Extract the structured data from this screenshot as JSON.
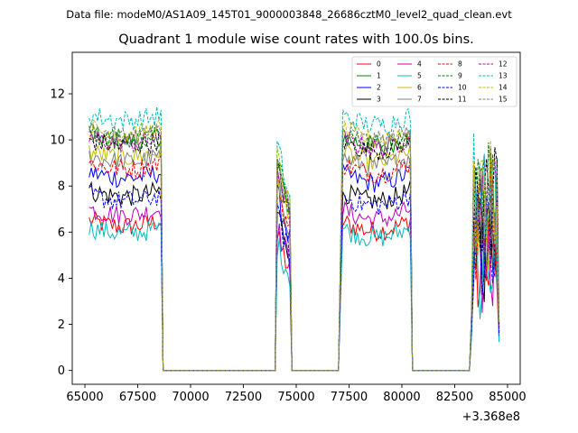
{
  "chart_data": {
    "type": "line",
    "suptitle": "Data file: modeM0/AS1A09_145T01_9000003848_26686cztM0_level2_quad_clean.evt",
    "title": "Quadrant 1 module wise count rates with 100.0s bins.",
    "xlabel": "",
    "ylabel": "",
    "x_offset_label": "+3.368e8",
    "xlim": [
      64400,
      85600
    ],
    "ylim": [
      -0.6,
      13.8
    ],
    "x_ticks": [
      65000,
      67500,
      70000,
      72500,
      75000,
      77500,
      80000,
      82500,
      85000
    ],
    "x_tick_labels": [
      "65000",
      "67500",
      "70000",
      "72500",
      "75000",
      "77500",
      "80000",
      "82500",
      "85000"
    ],
    "y_ticks": [
      0,
      2,
      4,
      6,
      8,
      10,
      12
    ],
    "y_tick_labels": [
      "0",
      "2",
      "4",
      "6",
      "8",
      "10",
      "12"
    ],
    "legend_position": "upper-right",
    "segments": [
      {
        "start": 65200,
        "end": 68600,
        "type": "on"
      },
      {
        "start": 68700,
        "end": 74000,
        "type": "off"
      },
      {
        "start": 74100,
        "end": 74700,
        "type": "on"
      },
      {
        "start": 74800,
        "end": 77000,
        "type": "off"
      },
      {
        "start": 77100,
        "end": 80400,
        "type": "on"
      },
      {
        "start": 80500,
        "end": 83200,
        "type": "off"
      },
      {
        "start": 83300,
        "end": 84600,
        "type": "on"
      }
    ],
    "series": [
      {
        "name": "0",
        "color": "#ff0000",
        "dash": "solid",
        "level": 6.5
      },
      {
        "name": "1",
        "color": "#008000",
        "dash": "solid",
        "level": 10.2
      },
      {
        "name": "2",
        "color": "#0000ff",
        "dash": "solid",
        "level": 8.6
      },
      {
        "name": "3",
        "color": "#000000",
        "dash": "solid",
        "level": 7.8
      },
      {
        "name": "4",
        "color": "#bf00bf",
        "dash": "solid",
        "level": 7.0
      },
      {
        "name": "5",
        "color": "#00bfbf",
        "dash": "solid",
        "level": 6.2
      },
      {
        "name": "6",
        "color": "#bfbf00",
        "dash": "solid",
        "level": 9.5
      },
      {
        "name": "7",
        "color": "#808080",
        "dash": "solid",
        "level": 9.3
      },
      {
        "name": "8",
        "color": "#ff0000",
        "dash": "dashed",
        "level": 9.0
      },
      {
        "name": "9",
        "color": "#008000",
        "dash": "dashed",
        "level": 10.3
      },
      {
        "name": "10",
        "color": "#0000ff",
        "dash": "dashed",
        "level": 7.6
      },
      {
        "name": "11",
        "color": "#000000",
        "dash": "dashed",
        "level": 10.0
      },
      {
        "name": "12",
        "color": "#bf00bf",
        "dash": "dashed",
        "level": 10.1
      },
      {
        "name": "13",
        "color": "#00bfbf",
        "dash": "dashed",
        "level": 11.1
      },
      {
        "name": "14",
        "color": "#bfbf00",
        "dash": "dashed",
        "level": 10.5
      },
      {
        "name": "15",
        "color": "#808080",
        "dash": "dashed",
        "level": 10.4
      }
    ]
  }
}
